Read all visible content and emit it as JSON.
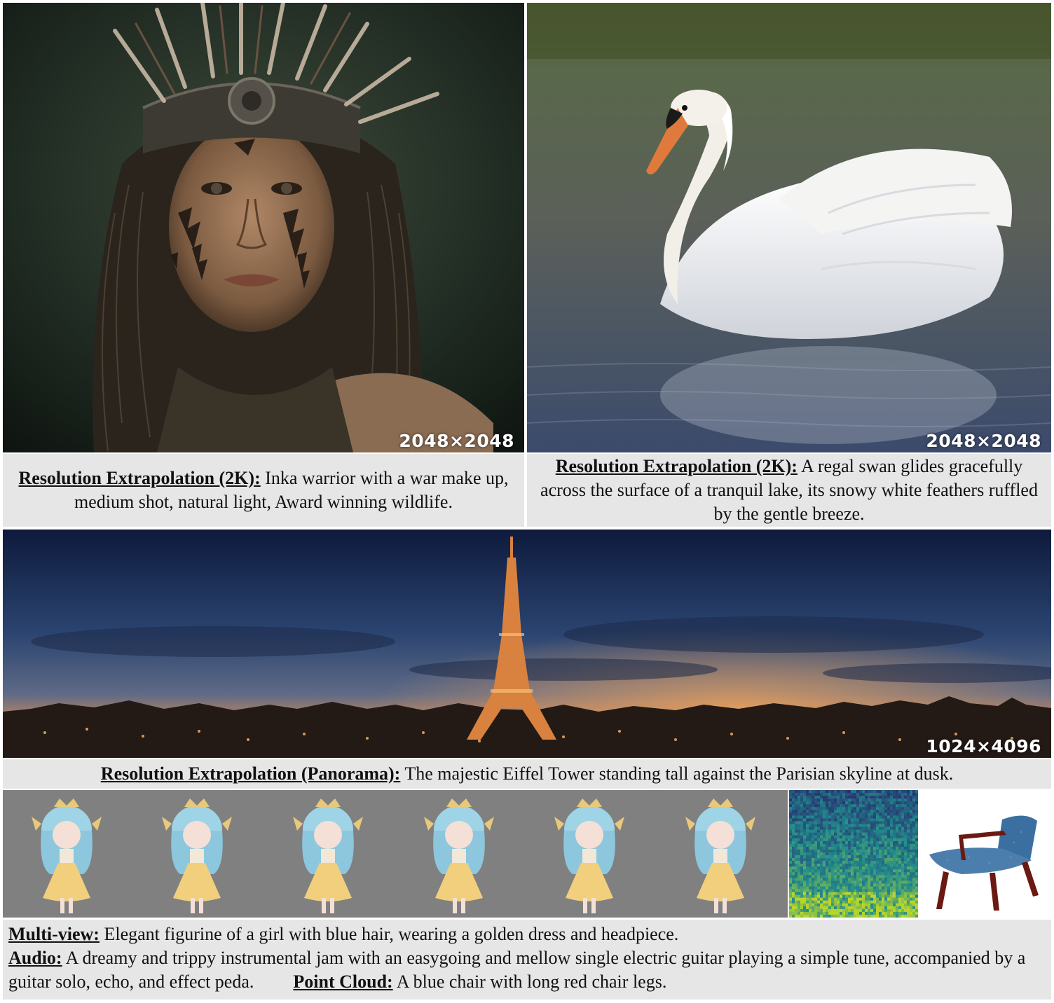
{
  "panels": {
    "warrior": {
      "resolution": "2048×2048",
      "caption_lead": "Resolution Extrapolation (2K):",
      "caption_text": " Inka warrior with a war make up, medium shot, natural light, Award winning wildlife."
    },
    "swan": {
      "resolution": "2048×2048",
      "caption_lead": "Resolution Extrapolation (2K):",
      "caption_text": " A regal swan glides gracefully across the surface of a tranquil lake, its snowy white feathers ruffled by the gentle breeze."
    },
    "eiffel": {
      "resolution": "1024×4096",
      "caption_lead": "Resolution Extrapolation (Panorama):",
      "caption_text": " The majestic Eiffel Tower standing tall against the Parisian skyline at dusk."
    }
  },
  "bottom": {
    "multiview_lead": "Multi-view:",
    "multiview_text": " Elegant figurine of a girl with blue hair, wearing a golden dress and headpiece.",
    "audio_lead": "Audio:",
    "audio_text": " A dreamy and trippy instrumental jam with an easygoing and mellow single electric guitar playing a simple tune, accompanied by a guitar solo, echo, and effect peda.",
    "pointcloud_lead": "Point Cloud:",
    "pointcloud_text": " A blue chair with long red chair legs."
  },
  "colors": {
    "caption_bg": "#e6e6e6",
    "multiview_bg": "#808080",
    "spectrogram_low": "#2b1d6b",
    "spectrogram_high": "#b8d62a",
    "chair_seat": "#3b6fa0",
    "chair_legs": "#6a1a12"
  }
}
